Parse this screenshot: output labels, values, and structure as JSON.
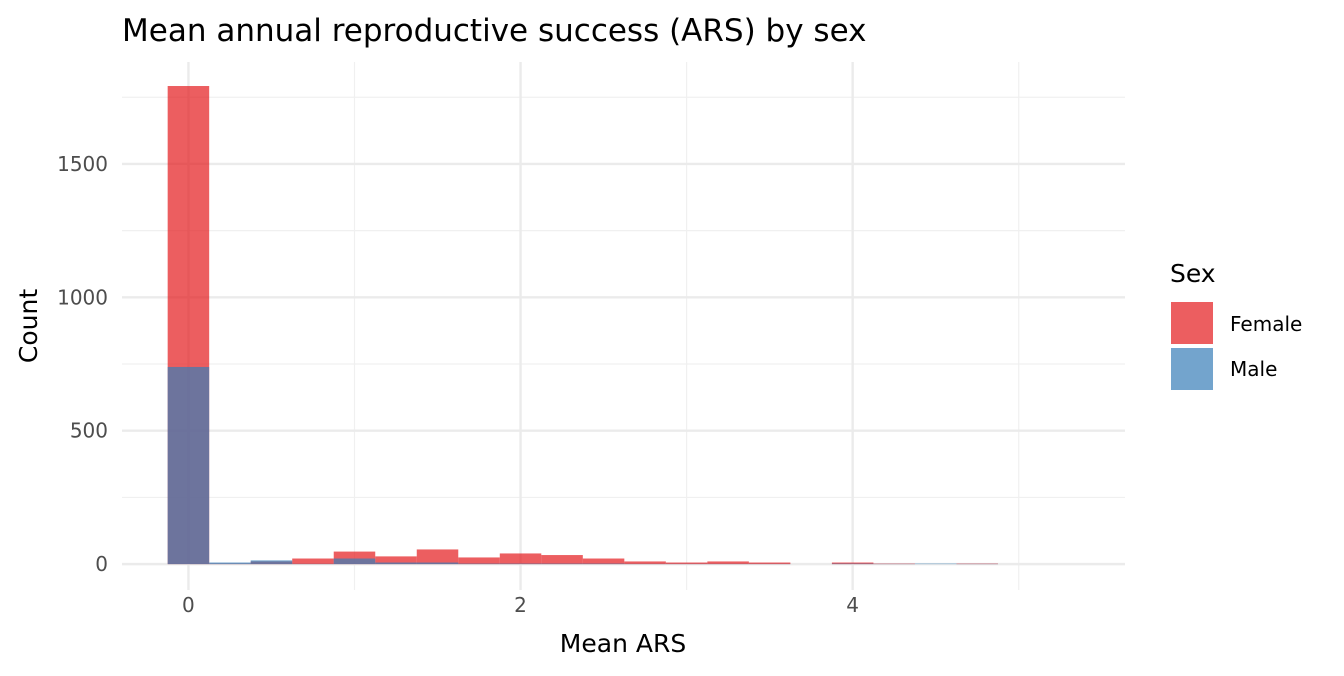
{
  "chart_data": {
    "type": "bar",
    "title": "Mean annual reproductive success (ARS) by sex",
    "xlabel": "Mean ARS",
    "ylabel": "Count",
    "xlim": [
      -0.4,
      5.64
    ],
    "ylim": [
      -97,
      1882
    ],
    "x_ticks": [
      0,
      2,
      4
    ],
    "x_tick_labels": [
      "0",
      "2",
      "4"
    ],
    "y_ticks": [
      0,
      500,
      1000,
      1500
    ],
    "y_tick_labels": [
      "0",
      "500",
      "1000",
      "1500"
    ],
    "grid": true,
    "bin_width": 0.25,
    "bin_centers": [
      0,
      0.25,
      0.5,
      0.75,
      1,
      1.25,
      1.5,
      1.75,
      2,
      2.25,
      2.5,
      2.75,
      3,
      3.25,
      3.5,
      3.75,
      4,
      4.25,
      4.5,
      4.75
    ],
    "legend": {
      "title": "Sex",
      "placement": "right"
    },
    "series": [
      {
        "name": "Female",
        "color": "#E41A1C",
        "values": [
          1792,
          2,
          10,
          21,
          47,
          29,
          55,
          25,
          40,
          34,
          21,
          10,
          6,
          10,
          6,
          0,
          6,
          2,
          0,
          2
        ]
      },
      {
        "name": "Male",
        "color": "#377EB8",
        "values": [
          739,
          6,
          14,
          1,
          21,
          6,
          6,
          2,
          2,
          2,
          2,
          1,
          1,
          1,
          1,
          0,
          2,
          1,
          2,
          1
        ]
      }
    ],
    "opacity": 0.7
  }
}
